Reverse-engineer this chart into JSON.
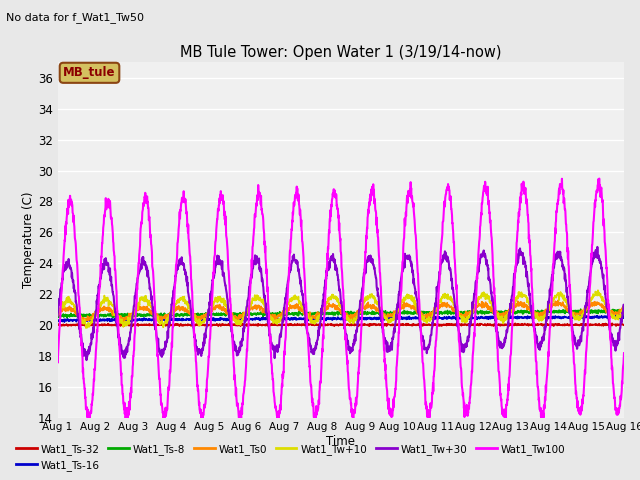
{
  "title": "MB Tule Tower: Open Water 1 (3/19/14-now)",
  "no_data_text": "No data for f_Wat1_Tw50",
  "xlabel": "Time",
  "ylabel": "Temperature (C)",
  "ylim": [
    14,
    37
  ],
  "xlim": [
    0,
    15
  ],
  "yticks": [
    14,
    16,
    18,
    20,
    22,
    24,
    26,
    28,
    30,
    32,
    34,
    36
  ],
  "xtick_labels": [
    "Aug 1",
    "Aug 2",
    "Aug 3",
    "Aug 4",
    "Aug 5",
    "Aug 6",
    "Aug 7",
    "Aug 8",
    "Aug 9",
    "Aug 10",
    "Aug 11",
    "Aug 12",
    "Aug 13",
    "Aug 14",
    "Aug 15",
    "Aug 16"
  ],
  "bg_color": "#e8e8e8",
  "plot_bg_color": "#f0f0f0",
  "legend_label": "MB_tule",
  "legend_box_color": "#d4c060",
  "legend_text_color": "#8b0000",
  "colors": {
    "Wat1_Ts-32": "#cc0000",
    "Wat1_Ts-16": "#0000cc",
    "Wat1_Ts-8": "#00aa00",
    "Wat1_Ts0": "#ff8800",
    "Wat1_Tw+10": "#dddd00",
    "Wat1_Tw+30": "#8800cc",
    "Wat1_Tw100": "#ff00ff"
  },
  "legend_row1": [
    "Wat1_Ts-32",
    "Wat1_Ts-16",
    "Wat1_Ts-8",
    "Wat1_Ts0",
    "Wat1_Tw+10",
    "Wat1_Tw+30"
  ],
  "legend_row2": [
    "Wat1_Tw100"
  ]
}
